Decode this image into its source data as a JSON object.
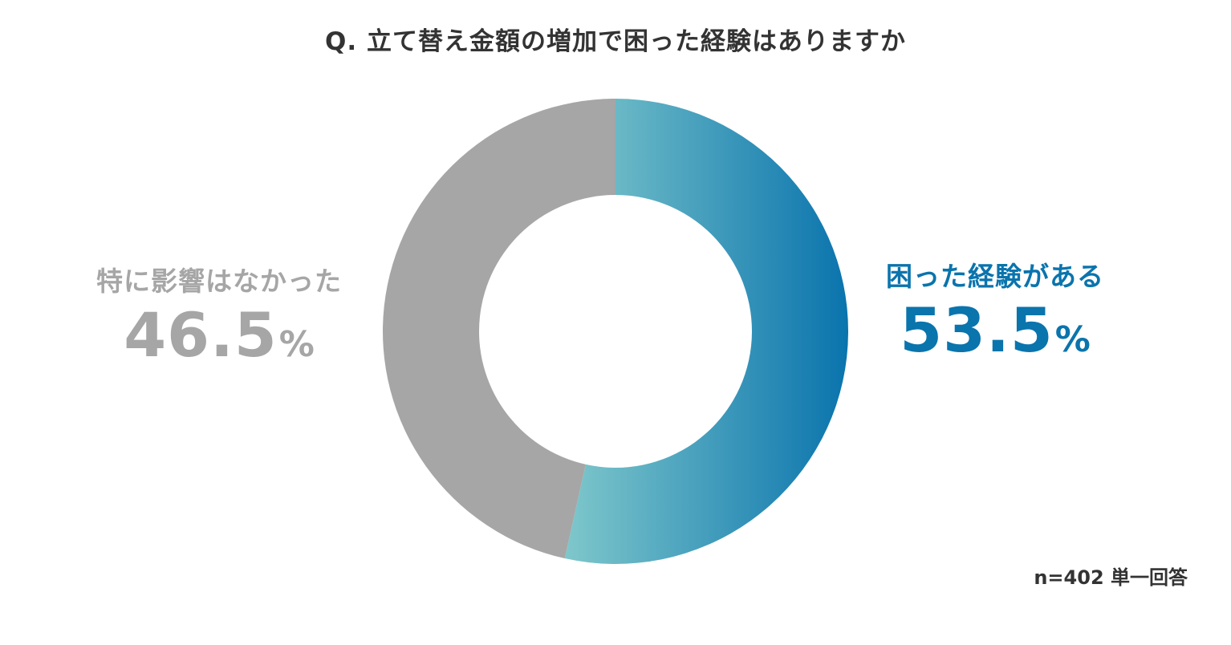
{
  "title": "Q. 立て替え金額の増加で困った経験はありますか",
  "footnote": "n=402 単一回答",
  "chart_data": {
    "type": "pie",
    "subtype": "donut",
    "title": "Q. 立て替え金額の増加で困った経験はありますか",
    "slices": [
      {
        "label": "困った経験がある",
        "value": 53.5,
        "display": "53.5",
        "unit": "%",
        "color": "#0a74ad",
        "gradient": [
          "#7ec7cb",
          "#0a74ad"
        ]
      },
      {
        "label": "特に影響はなかった",
        "value": 46.5,
        "display": "46.5",
        "unit": "%",
        "color": "#a6a6a6"
      }
    ],
    "start": "12 o'clock",
    "direction": "clockwise",
    "legend": "none",
    "note": "n=402 単一回答"
  }
}
